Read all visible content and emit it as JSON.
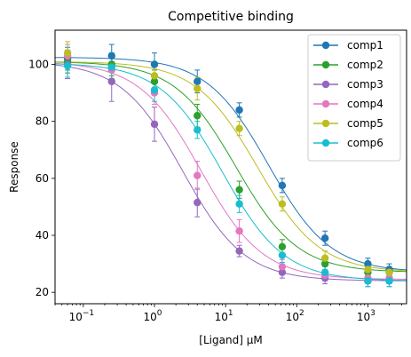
{
  "chart_data": {
    "type": "scatter",
    "title": "Competitive binding",
    "xlabel": "[Ligand] μM",
    "ylabel": "Response",
    "xscale": "log",
    "xlim": [
      0.04,
      3500
    ],
    "ylim": [
      16,
      112
    ],
    "xticks": [
      {
        "value": 0.1,
        "base": "10",
        "exp": "−1"
      },
      {
        "value": 1,
        "base": "10",
        "exp": "0"
      },
      {
        "value": 10,
        "base": "10",
        "exp": "1"
      },
      {
        "value": 100,
        "base": "10",
        "exp": "2"
      },
      {
        "value": 1000,
        "base": "10",
        "exp": "3"
      }
    ],
    "yticks": [
      "20",
      "40",
      "60",
      "80",
      "100"
    ],
    "grid": false,
    "legend": "top-right",
    "x": [
      0.06,
      0.25,
      1,
      4,
      15.6,
      62.5,
      250,
      1000,
      2000
    ],
    "series": [
      {
        "name": "comp1",
        "color": "#1f77b4",
        "y": [
          102,
          103,
          100,
          94,
          84,
          57.5,
          39,
          30,
          28
        ],
        "err": [
          4,
          4,
          4,
          4,
          2.5,
          2.5,
          2.5,
          2,
          2
        ],
        "fit": {
          "top": 102.5,
          "bottom": 27,
          "ec50": 40,
          "hill": 1.0
        }
      },
      {
        "name": "comp2",
        "color": "#2ca02c",
        "y": [
          101,
          100,
          94,
          82,
          56,
          36,
          30,
          27,
          27
        ],
        "err": [
          4,
          4,
          4,
          4,
          3,
          2.5,
          2.5,
          2,
          2
        ],
        "fit": {
          "top": 101,
          "bottom": 27,
          "ec50": 14,
          "hill": 1.0
        }
      },
      {
        "name": "comp3",
        "color": "#9467bd",
        "y": [
          100,
          94,
          79,
          51.5,
          34.5,
          27,
          25,
          24,
          24
        ],
        "err": [
          5,
          7,
          6,
          5,
          2,
          2,
          2,
          2,
          2
        ],
        "fit": {
          "top": 101,
          "bottom": 24,
          "ec50": 2.5,
          "hill": 1.0
        }
      },
      {
        "name": "comp4",
        "color": "#e377c2",
        "y": [
          103,
          98,
          90,
          61,
          41.5,
          29,
          26,
          25,
          25
        ],
        "err": [
          4,
          4,
          4,
          5,
          4,
          2.5,
          2,
          2,
          2
        ],
        "fit": {
          "top": 101,
          "bottom": 24.5,
          "ec50": 4.5,
          "hill": 1.0
        }
      },
      {
        "name": "comp5",
        "color": "#bcbd22",
        "y": [
          104,
          99,
          96,
          91.5,
          77.5,
          51,
          32,
          28,
          27
        ],
        "err": [
          4,
          4,
          4,
          4,
          2.5,
          2.5,
          2.5,
          2,
          2
        ],
        "fit": {
          "top": 101,
          "bottom": 27,
          "ec50": 28,
          "hill": 1.0
        }
      },
      {
        "name": "comp6",
        "color": "#17becf",
        "y": [
          99.5,
          99,
          91,
          77,
          51,
          33,
          27,
          24,
          24
        ],
        "err": [
          4,
          4,
          4,
          3,
          3,
          2.5,
          2,
          2,
          2
        ],
        "fit": {
          "top": 100.5,
          "bottom": 24,
          "ec50": 9,
          "hill": 1.0
        }
      }
    ]
  }
}
